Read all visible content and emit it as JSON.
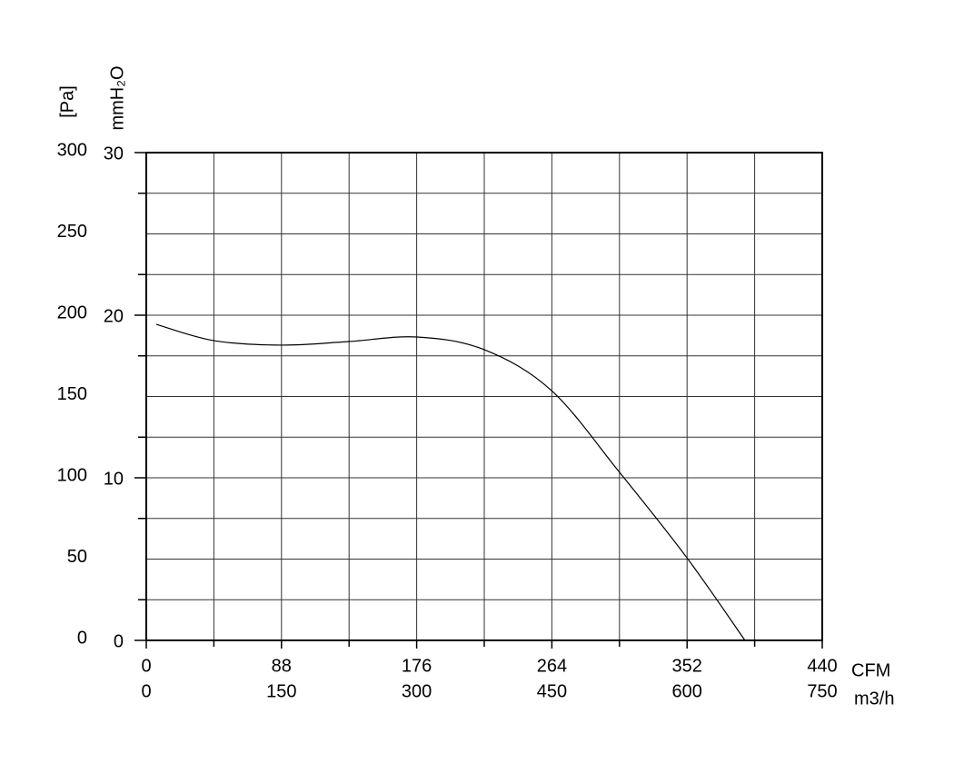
{
  "chart_data": {
    "type": "line",
    "y_label": "[Pa]",
    "y2_label": "mmH₂O",
    "x_label": "CFM",
    "x2_label": "m3/h",
    "x": [
      6.5,
      43.8,
      88,
      131.9,
      176.2,
      220,
      263.8,
      308,
      351.9,
      389.7
    ],
    "series": [
      {
        "color": "#000000",
        "values": [
          194.4,
          184.4,
          181.6,
          183.8,
          186.6,
          178.8,
          153.6,
          103.4,
          50.8,
          0
        ]
      }
    ],
    "xlim": [
      0,
      440
    ],
    "xticks": [
      0,
      88,
      176,
      264,
      352,
      440
    ],
    "xminor": [
      44,
      132,
      220,
      308,
      396
    ],
    "x2lim": [
      0,
      750
    ],
    "x2ticks": [
      0,
      150,
      300,
      450,
      600,
      750
    ],
    "ylim": [
      0,
      300
    ],
    "yticks": [
      0,
      50,
      100,
      150,
      200,
      250,
      300
    ],
    "yminor": [
      25,
      75,
      125,
      175,
      225,
      275
    ],
    "y2lim": [
      0,
      30
    ],
    "y2ticks": [
      0,
      10,
      20,
      30
    ],
    "grid": true
  }
}
